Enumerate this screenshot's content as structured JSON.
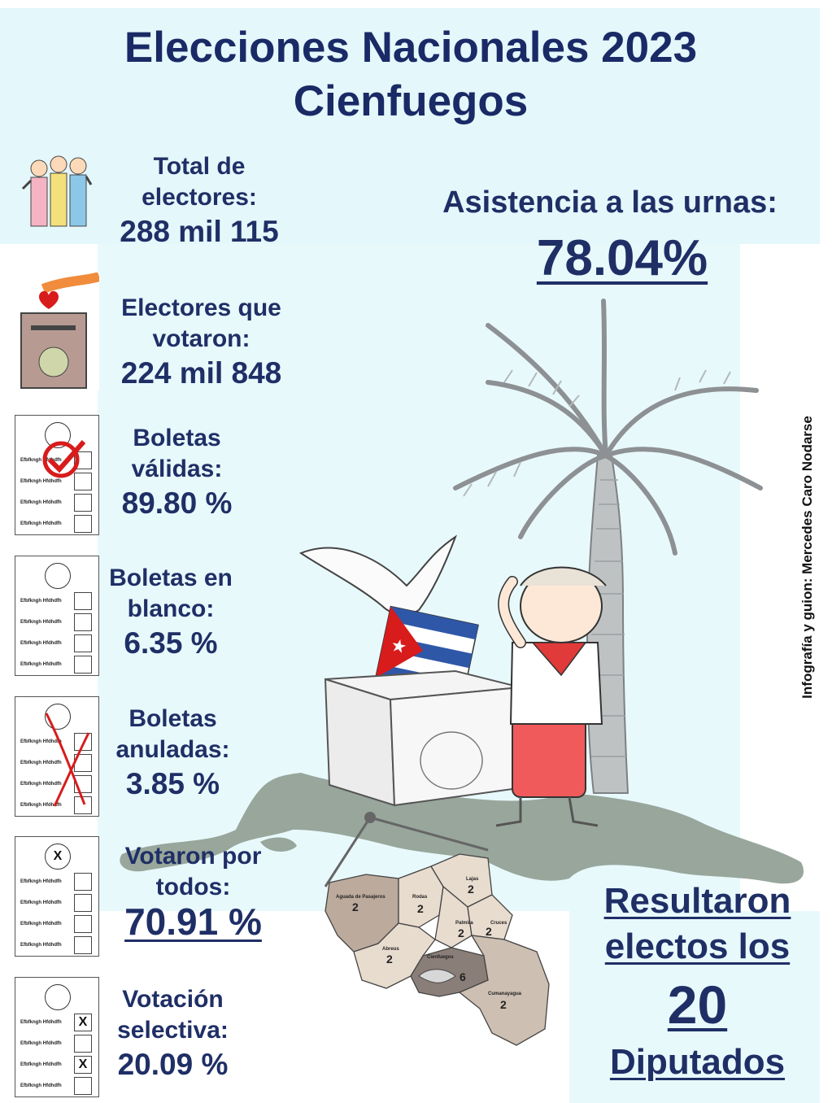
{
  "title_line1": "Elecciones Nacionales 2023",
  "title_line2": "Cienfuegos",
  "stats": {
    "total_label": "Total de electores:",
    "total_value": "288 mil 115",
    "voted_label": "Electores que votaron:",
    "voted_value": "224 mil 848",
    "valid_label": "Boletas válidas:",
    "valid_value": "89.80 %",
    "blank_label": "Boletas en blanco:",
    "blank_value": "6.35 %",
    "annulled_label": "Boletas anuladas:",
    "annulled_value": "3.85 %",
    "all_label": "Votaron por todos:",
    "all_value": "70.91 %",
    "selective_label": "Votación selectiva:",
    "selective_value": "20.09 %"
  },
  "attendance": {
    "label": "Asistencia a las urnas:",
    "value": "78.04%"
  },
  "credit": "Infografía y guion: Mercedes Caro Nodarse",
  "result": {
    "line1": "Resultaron",
    "line2": "electos los",
    "number": "20",
    "line3": "Diputados"
  },
  "ballot_row_text": "Efbfkngh Hfdhdfh",
  "ballot_mark_x": "X",
  "map": {
    "municipalities": [
      {
        "name": "Aguada de Pasajeros",
        "seats": "2"
      },
      {
        "name": "Rodas",
        "seats": "2"
      },
      {
        "name": "Lajas",
        "seats": "2"
      },
      {
        "name": "Palmira",
        "seats": "2"
      },
      {
        "name": "Cruces",
        "seats": "2"
      },
      {
        "name": "Abreus",
        "seats": "2"
      },
      {
        "name": "Cienfuegos",
        "seats": "6"
      },
      {
        "name": "Cumanayagua",
        "seats": "2"
      }
    ]
  },
  "colors": {
    "title": "#1a2a66",
    "text": "#1f2f66",
    "band": "#e4f7fb",
    "accent_red": "#d81b1b"
  }
}
